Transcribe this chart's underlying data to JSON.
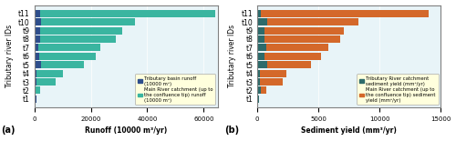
{
  "labels": [
    "t1",
    "t2",
    "t3",
    "t4",
    "t5",
    "t6",
    "t7",
    "t8",
    "t9",
    "t10",
    "t11"
  ],
  "runoff_tributary": [
    700,
    400,
    600,
    700,
    2500,
    1800,
    1500,
    2000,
    2000,
    2500,
    2000
  ],
  "runoff_main": [
    0,
    1500,
    7000,
    9500,
    15000,
    20000,
    22000,
    27000,
    29000,
    33000,
    62000
  ],
  "sediment_tributary": [
    150,
    300,
    200,
    250,
    800,
    600,
    700,
    600,
    600,
    800,
    300
  ],
  "sediment_main": [
    0,
    450,
    1900,
    2100,
    3600,
    4600,
    5100,
    6200,
    6500,
    7500,
    13700
  ],
  "color_trib_runoff": "#2e4e8c",
  "color_main_runoff": "#3ab5a0",
  "color_trib_sed": "#2d6b6b",
  "color_main_sed": "#d4682a",
  "legend_bg": "#ffffdd",
  "plot_bg": "#e8f4f8",
  "xlim_runoff": [
    0,
    65000
  ],
  "xlim_sed": [
    0,
    15000
  ],
  "xlabel_runoff": "Runoff (10000 m³/yr)",
  "xlabel_sed": "Sediment yield (mm³/yr)",
  "ylabel": "Tributary river IDs",
  "legend_a": [
    "Tributary basin runoff\n(10000 m³)",
    "Main River catchment (up to\nthe confluence tip) runoff\n(10000 m³)"
  ],
  "legend_b": [
    "Tributary River catchment\nsediment yield (mm³/yr)",
    "Main River catchment (up to\nthe confluence tip) sediment\nyield (mm³/yr)"
  ],
  "panel_a_label": "(a)",
  "panel_b_label": "(b)"
}
